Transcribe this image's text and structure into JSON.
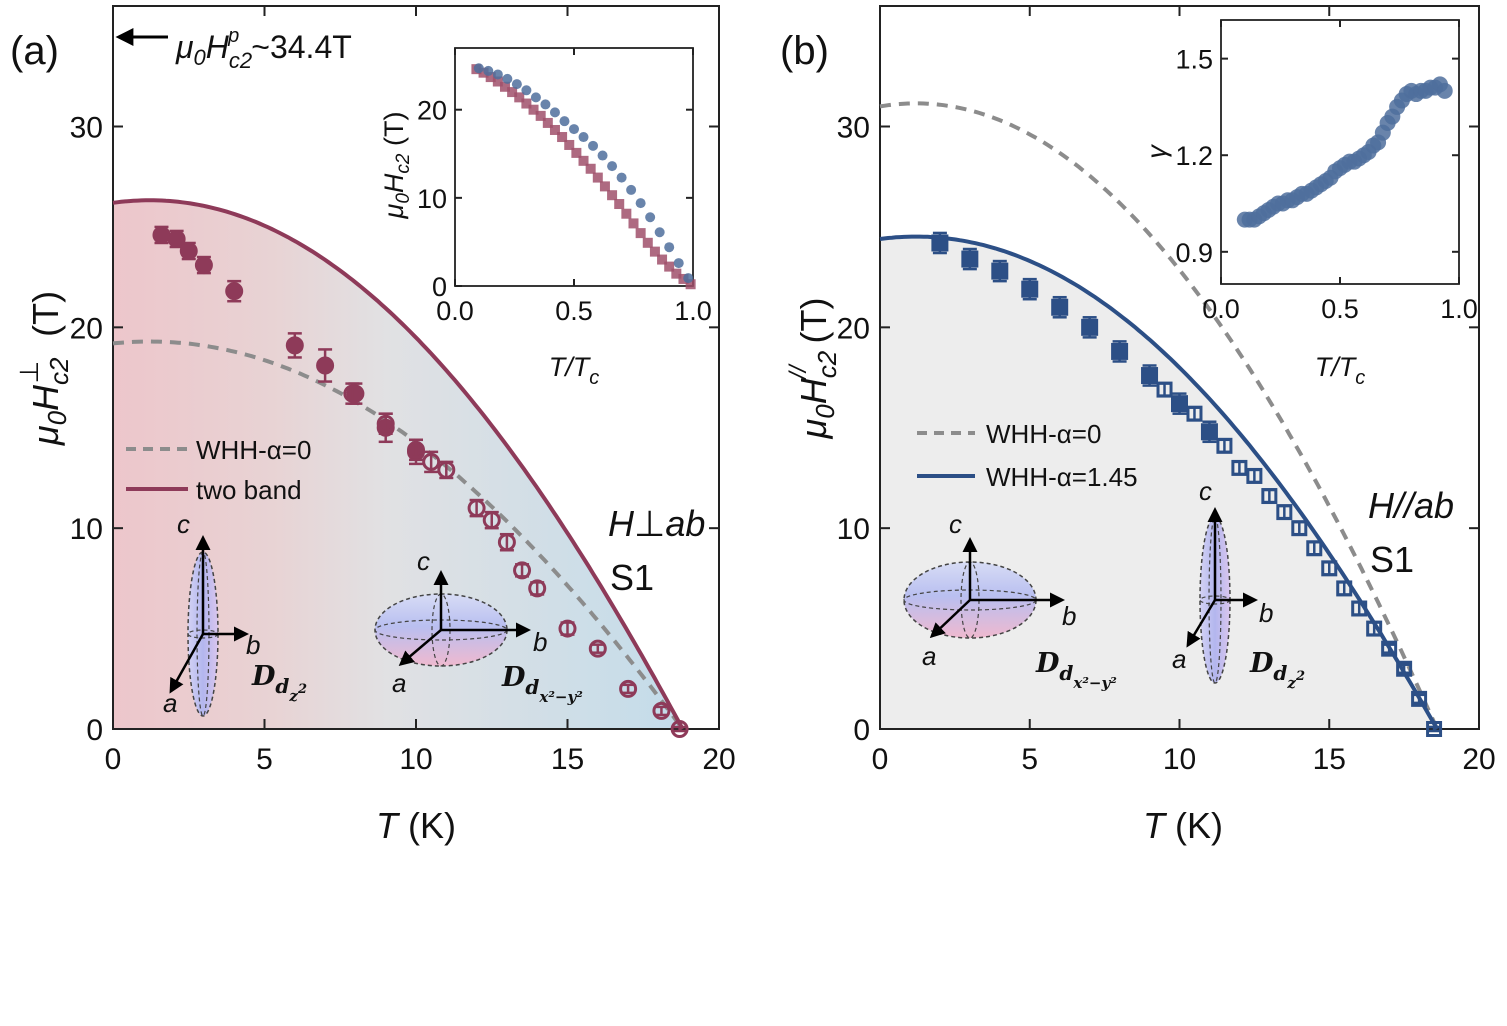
{
  "chart_data": [
    {
      "type": "scatter",
      "panel_label": "(a)",
      "ylabel": "μ0Hc2⊥ (T)",
      "ylabel_parts": {
        "mu": "μ",
        "sub0": "0",
        "h": "H",
        "sub": "c2",
        "sup": "⊥",
        "unit": " (T)"
      },
      "xlabel": "T (K)",
      "xlabel_parts": {
        "t": "T",
        "unit": " (K)"
      },
      "xlim": [
        0,
        20
      ],
      "ylim": [
        0,
        36
      ],
      "xticks": [
        0,
        5,
        10,
        15,
        20
      ],
      "yticks": [
        0,
        10,
        20,
        30
      ],
      "pauli_annotation": {
        "value": 34.4,
        "parts": {
          "mu": "μ",
          "sub0": "0",
          "h": "H",
          "sub": "c2",
          "sup": "p",
          "rest": "~34.4T"
        }
      },
      "field_direction": "H⊥ab",
      "field_parts": {
        "h": "H",
        "symbol": "⊥",
        "ab": "ab"
      },
      "sample": "S1",
      "series": [
        {
          "name": "filled circles",
          "marker": "filled-circle",
          "color": "#8e3a59",
          "x": [
            1.6,
            2.1,
            2.5,
            3.0,
            4.0,
            6.0,
            7.0,
            8.0,
            9.0,
            10.0
          ],
          "y": [
            24.6,
            24.4,
            23.8,
            23.1,
            21.8,
            19.1,
            18.1,
            16.7,
            15.0,
            13.8
          ],
          "yerr": [
            0.4,
            0.4,
            0.4,
            0.4,
            0.5,
            0.6,
            0.8,
            0.5,
            0.7,
            0.6
          ]
        },
        {
          "name": "open circles",
          "marker": "open-circle",
          "color": "#8e3a59",
          "x": [
            7.9,
            9.0,
            10.0,
            10.5,
            11.0,
            12.0,
            12.5,
            13.0,
            13.5,
            14.0,
            15.0,
            16.0,
            17.0,
            18.1,
            18.7
          ],
          "y": [
            16.7,
            15.2,
            13.9,
            13.3,
            12.9,
            11.0,
            10.4,
            9.3,
            7.9,
            7.0,
            5.0,
            4.0,
            2.0,
            0.9,
            0.0
          ],
          "yerr": [
            0.5,
            0.5,
            0.5,
            0.5,
            0.4,
            0.4,
            0.4,
            0.4,
            0.3,
            0.3,
            0.3,
            0.2,
            0.2,
            0.2,
            0.1
          ]
        }
      ],
      "curves": [
        {
          "name": "two band",
          "style": "solid",
          "color": "#8e3a59",
          "H0": 26.2,
          "Tc": 18.8
        },
        {
          "name": "WHH-α=0",
          "style": "dashed",
          "color": "#8c8c8c",
          "H0": 19.2,
          "Tc": 18.8
        }
      ],
      "legend": [
        "WHH-α=0",
        "two band"
      ],
      "shading": {
        "from": "pink",
        "to": "light-blue"
      },
      "ellipsoids": [
        {
          "name": "Dz2",
          "axes": {
            "a": "a",
            "b": "b",
            "c": "c"
          },
          "label_parts": {
            "D": "D",
            "d": "d",
            "sub": "z",
            "sup": "2"
          }
        },
        {
          "name": "Dx2-y2",
          "axes": {
            "a": "a",
            "b": "b",
            "c": "c"
          },
          "label_parts": {
            "D": "D",
            "d": "d",
            "sub": "x²−y²"
          }
        }
      ],
      "inset": {
        "xlabel": "T/Tc",
        "xlabel_parts": {
          "t": "T/T",
          "sub": "c"
        },
        "ylabel": "μ0Hc2 (T)",
        "ylabel_parts": {
          "mu": "μ",
          "sub0": "0",
          "h": "H",
          "sub": "c2",
          "unit": " (T)"
        },
        "xlim": [
          0,
          1
        ],
        "ylim": [
          0,
          27
        ],
        "xticks": [
          "0.0",
          "0.5",
          "1.0"
        ],
        "yticks": [
          "0",
          "10",
          "20"
        ],
        "series": [
          {
            "name": "H⊥ab",
            "marker": "square",
            "color": "#a0506b",
            "x": [
              0.09,
              0.12,
              0.15,
              0.18,
              0.21,
              0.24,
              0.27,
              0.3,
              0.33,
              0.36,
              0.39,
              0.42,
              0.45,
              0.48,
              0.51,
              0.54,
              0.57,
              0.6,
              0.63,
              0.66,
              0.69,
              0.72,
              0.75,
              0.78,
              0.81,
              0.84,
              0.87,
              0.9,
              0.93,
              0.96,
              0.99
            ],
            "y": [
              24.6,
              24.2,
              23.7,
              23.2,
              22.6,
              22.0,
              21.4,
              20.7,
              20.0,
              19.3,
              18.5,
              17.7,
              16.9,
              16.0,
              15.1,
              14.2,
              13.3,
              12.3,
              11.3,
              10.3,
              9.3,
              8.2,
              7.1,
              6.0,
              4.9,
              3.9,
              3.0,
              2.2,
              1.4,
              0.8,
              0.2
            ]
          },
          {
            "name": "H//ab",
            "marker": "circle",
            "color": "#4f6f9c",
            "x": [
              0.1,
              0.14,
              0.18,
              0.22,
              0.26,
              0.3,
              0.34,
              0.38,
              0.42,
              0.46,
              0.5,
              0.54,
              0.58,
              0.62,
              0.66,
              0.7,
              0.74,
              0.78,
              0.82,
              0.86,
              0.9,
              0.94,
              0.98
            ],
            "y": [
              24.7,
              24.4,
              24.0,
              23.5,
              22.9,
              22.2,
              21.4,
              20.6,
              19.7,
              18.7,
              17.8,
              16.9,
              15.9,
              14.8,
              13.6,
              12.3,
              10.9,
              9.4,
              7.8,
              6.1,
              4.4,
              2.6,
              0.9
            ]
          }
        ]
      }
    },
    {
      "type": "scatter",
      "panel_label": "(b)",
      "ylabel": "μ0Hc2// (T)",
      "ylabel_parts": {
        "mu": "μ",
        "sub0": "0",
        "h": "H",
        "sub": "c2",
        "sup": "//",
        "unit": " (T)"
      },
      "xlabel": "T (K)",
      "xlabel_parts": {
        "t": "T",
        "unit": " (K)"
      },
      "xlim": [
        0,
        20
      ],
      "ylim": [
        0,
        36
      ],
      "xticks": [
        0,
        5,
        10,
        15,
        20
      ],
      "yticks": [
        0,
        10,
        20,
        30
      ],
      "field_direction": "H//ab",
      "field_parts": {
        "h": "H",
        "symbol": "//",
        "ab": "ab"
      },
      "sample": "S1",
      "series": [
        {
          "name": "filled squares",
          "marker": "filled-square",
          "color": "#2c4f86",
          "x": [
            2.0,
            3.0,
            4.0,
            5.0,
            6.0,
            7.0,
            8.0,
            9.0,
            10.0,
            11.0
          ],
          "y": [
            24.2,
            23.4,
            22.8,
            21.9,
            21.0,
            20.0,
            18.8,
            17.6,
            16.2,
            14.8
          ],
          "yerr": [
            0.5,
            0.5,
            0.5,
            0.5,
            0.5,
            0.5,
            0.5,
            0.5,
            0.5,
            0.5
          ]
        },
        {
          "name": "open squares",
          "marker": "open-square",
          "color": "#2c4f86",
          "x": [
            9.5,
            10.5,
            11.5,
            12.0,
            12.5,
            13.0,
            13.5,
            14.0,
            14.5,
            15.0,
            15.5,
            16.0,
            16.5,
            17.0,
            17.5,
            18.0,
            18.5
          ],
          "y": [
            16.9,
            15.7,
            14.1,
            13.0,
            12.6,
            11.6,
            10.8,
            10.0,
            9.0,
            8.0,
            7.0,
            6.0,
            5.0,
            4.0,
            3.0,
            1.5,
            0.0
          ],
          "yerr": [
            0.3,
            0.3,
            0.3,
            0.3,
            0.3,
            0.3,
            0.3,
            0.3,
            0.3,
            0.3,
            0.3,
            0.3,
            0.3,
            0.2,
            0.2,
            0.2,
            0.1
          ]
        }
      ],
      "curves": [
        {
          "name": "WHH-α=1.45",
          "style": "solid",
          "color": "#2c4f86",
          "H0": 24.4,
          "Tc": 18.6
        },
        {
          "name": "WHH-α=0",
          "style": "dashed",
          "color": "#8c8c8c",
          "H0": 31.0,
          "Tc": 18.6
        }
      ],
      "legend": [
        "WHH-α=0",
        "WHH-α=1.45"
      ],
      "ellipsoids": [
        {
          "name": "Dx2-y2",
          "axes": {
            "a": "a",
            "b": "b",
            "c": "c"
          },
          "label_parts": {
            "D": "D",
            "d": "d",
            "sub": "x²−y²"
          }
        },
        {
          "name": "Dz2",
          "axes": {
            "a": "a",
            "b": "b",
            "c": "c"
          },
          "label_parts": {
            "D": "D",
            "d": "d",
            "sub": "z",
            "sup": "2"
          }
        }
      ],
      "inset": {
        "xlabel": "T/Tc",
        "xlabel_parts": {
          "t": "T/T",
          "sub": "c"
        },
        "ylabel": "γ",
        "xlim": [
          0,
          1
        ],
        "ylim": [
          0.8,
          1.62
        ],
        "xticks": [
          "0.0",
          "0.5",
          "1.0"
        ],
        "yticks": [
          "0.9",
          "1.2",
          "1.5"
        ],
        "series": [
          {
            "name": "γ",
            "marker": "circle",
            "color": "#4f6f9c",
            "x": [
              0.1,
              0.12,
              0.14,
              0.16,
              0.18,
              0.2,
              0.22,
              0.24,
              0.26,
              0.28,
              0.3,
              0.32,
              0.34,
              0.36,
              0.38,
              0.4,
              0.42,
              0.44,
              0.46,
              0.48,
              0.5,
              0.52,
              0.54,
              0.56,
              0.58,
              0.6,
              0.62,
              0.64,
              0.66,
              0.68,
              0.7,
              0.72,
              0.74,
              0.76,
              0.78,
              0.8,
              0.82,
              0.84,
              0.86,
              0.88,
              0.9,
              0.92,
              0.94
            ],
            "y": [
              1.0,
              1.0,
              1.0,
              1.01,
              1.02,
              1.03,
              1.04,
              1.05,
              1.05,
              1.06,
              1.06,
              1.07,
              1.08,
              1.08,
              1.09,
              1.1,
              1.11,
              1.12,
              1.13,
              1.15,
              1.16,
              1.17,
              1.18,
              1.18,
              1.19,
              1.2,
              1.21,
              1.23,
              1.24,
              1.27,
              1.3,
              1.32,
              1.35,
              1.37,
              1.39,
              1.4,
              1.39,
              1.4,
              1.4,
              1.41,
              1.41,
              1.42,
              1.4
            ]
          }
        ]
      }
    }
  ]
}
